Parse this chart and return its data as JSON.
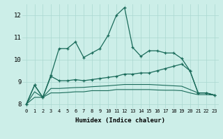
{
  "xlabel": "Humidex (Indice chaleur)",
  "background_color": "#cceee8",
  "grid_color": "#aad8d0",
  "line_color": "#1a6b5a",
  "xlim": [
    -0.5,
    23.5
  ],
  "ylim": [
    7.8,
    12.5
  ],
  "xticks": [
    0,
    1,
    2,
    3,
    4,
    5,
    6,
    7,
    8,
    9,
    10,
    11,
    12,
    13,
    14,
    15,
    16,
    17,
    18,
    19,
    20,
    21,
    22,
    23
  ],
  "yticks": [
    8,
    9,
    10,
    11,
    12
  ],
  "line1_x": [
    0,
    1,
    2,
    3,
    4,
    5,
    6,
    7,
    8,
    9,
    10,
    11,
    12,
    13,
    14,
    15,
    16,
    17,
    18,
    19,
    20,
    21,
    22,
    23
  ],
  "line1_y": [
    8.0,
    8.85,
    8.3,
    9.3,
    10.5,
    10.5,
    10.8,
    10.1,
    10.3,
    10.5,
    11.1,
    12.0,
    12.35,
    10.55,
    10.15,
    10.4,
    10.4,
    10.3,
    10.3,
    10.05,
    9.5,
    8.5,
    8.5,
    8.4
  ],
  "line2_x": [
    0,
    1,
    2,
    3,
    4,
    5,
    6,
    7,
    8,
    9,
    10,
    11,
    12,
    13,
    14,
    15,
    16,
    17,
    18,
    19,
    20,
    21,
    22,
    23
  ],
  "line2_y": [
    8.0,
    8.85,
    8.3,
    9.25,
    9.05,
    9.05,
    9.1,
    9.05,
    9.1,
    9.15,
    9.2,
    9.25,
    9.35,
    9.35,
    9.4,
    9.4,
    9.5,
    9.6,
    9.7,
    9.8,
    9.5,
    8.5,
    8.5,
    8.4
  ],
  "line3_x": [
    0,
    1,
    2,
    3,
    4,
    5,
    6,
    7,
    8,
    9,
    10,
    11,
    12,
    13,
    14,
    15,
    16,
    17,
    18,
    19,
    20,
    21,
    22,
    23
  ],
  "line3_y": [
    8.0,
    8.55,
    8.3,
    8.7,
    8.7,
    8.72,
    8.74,
    8.75,
    8.78,
    8.8,
    8.82,
    8.85,
    8.88,
    8.88,
    8.88,
    8.88,
    8.86,
    8.84,
    8.82,
    8.8,
    8.65,
    8.5,
    8.5,
    8.4
  ],
  "line4_x": [
    0,
    1,
    2,
    3,
    4,
    5,
    6,
    7,
    8,
    9,
    10,
    11,
    12,
    13,
    14,
    15,
    16,
    17,
    18,
    19,
    20,
    21,
    22,
    23
  ],
  "line4_y": [
    8.0,
    8.3,
    8.3,
    8.5,
    8.5,
    8.52,
    8.55,
    8.55,
    8.6,
    8.6,
    8.6,
    8.65,
    8.65,
    8.65,
    8.65,
    8.65,
    8.63,
    8.62,
    8.62,
    8.6,
    8.5,
    8.42,
    8.42,
    8.4
  ]
}
